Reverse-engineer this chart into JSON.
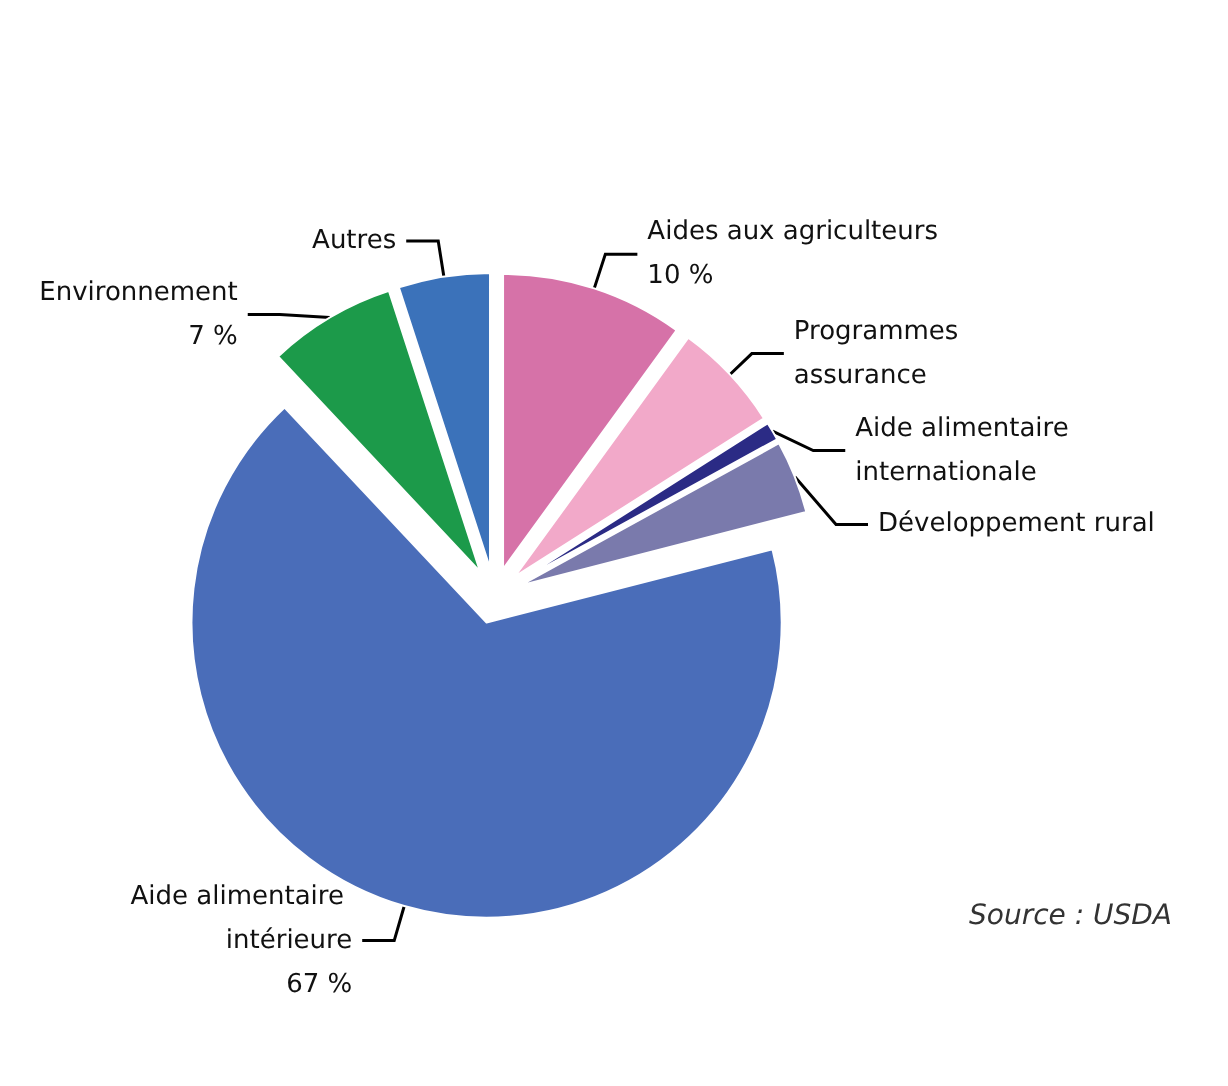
{
  "chart_data": {
    "type": "pie",
    "categories": [
      "Aides aux agriculteurs",
      "Programmes assurance",
      "Aide alimentaire internationale",
      "Développement rural",
      "Aide alimentaire intérieure",
      "Environnement",
      "Autres"
    ],
    "values": [
      10,
      6,
      1,
      4,
      67,
      7,
      5
    ],
    "colors": [
      "#d672a8",
      "#f2a9c9",
      "#2b2b85",
      "#7a7aac",
      "#4a6db9",
      "#1c9a4a",
      "#3b72ba"
    ],
    "value_labels": [
      "10 %",
      null,
      null,
      null,
      "67 %",
      "7 %",
      null
    ],
    "legend": false,
    "annotations": [
      "Source : USDA"
    ]
  }
}
